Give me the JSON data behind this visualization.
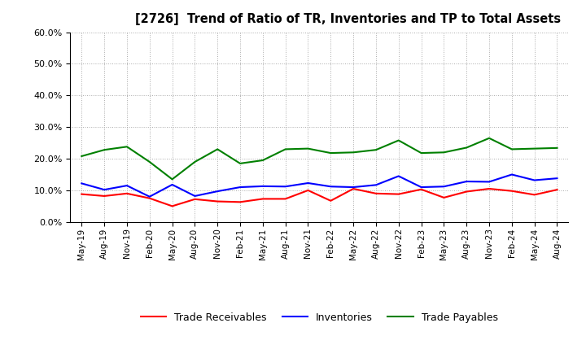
{
  "title": "[2726]  Trend of Ratio of TR, Inventories and TP to Total Assets",
  "x_labels": [
    "May-19",
    "Aug-19",
    "Nov-19",
    "Feb-20",
    "May-20",
    "Aug-20",
    "Nov-20",
    "Feb-21",
    "May-21",
    "Aug-21",
    "Nov-21",
    "Feb-22",
    "May-22",
    "Aug-22",
    "Nov-22",
    "Feb-23",
    "May-23",
    "Aug-23",
    "Nov-23",
    "Feb-24",
    "May-24",
    "Aug-24"
  ],
  "trade_receivables": [
    0.088,
    0.082,
    0.09,
    0.075,
    0.05,
    0.072,
    0.065,
    0.063,
    0.073,
    0.073,
    0.1,
    0.067,
    0.105,
    0.09,
    0.088,
    0.103,
    0.077,
    0.096,
    0.105,
    0.098,
    0.086,
    0.102
  ],
  "inventories": [
    0.122,
    0.102,
    0.115,
    0.08,
    0.118,
    0.082,
    0.097,
    0.11,
    0.113,
    0.112,
    0.123,
    0.112,
    0.11,
    0.117,
    0.145,
    0.11,
    0.112,
    0.128,
    0.127,
    0.15,
    0.132,
    0.138
  ],
  "trade_payables": [
    0.208,
    0.228,
    0.238,
    0.19,
    0.135,
    0.19,
    0.23,
    0.185,
    0.195,
    0.23,
    0.232,
    0.218,
    0.22,
    0.228,
    0.258,
    0.218,
    0.22,
    0.235,
    0.265,
    0.23,
    0.232,
    0.234
  ],
  "tr_color": "#ff0000",
  "inv_color": "#0000ff",
  "tp_color": "#008000",
  "ylim": [
    0.0,
    0.6
  ],
  "yticks": [
    0.0,
    0.1,
    0.2,
    0.3,
    0.4,
    0.5,
    0.6
  ],
  "bg_color": "#ffffff",
  "grid_color": "#aaaaaa"
}
